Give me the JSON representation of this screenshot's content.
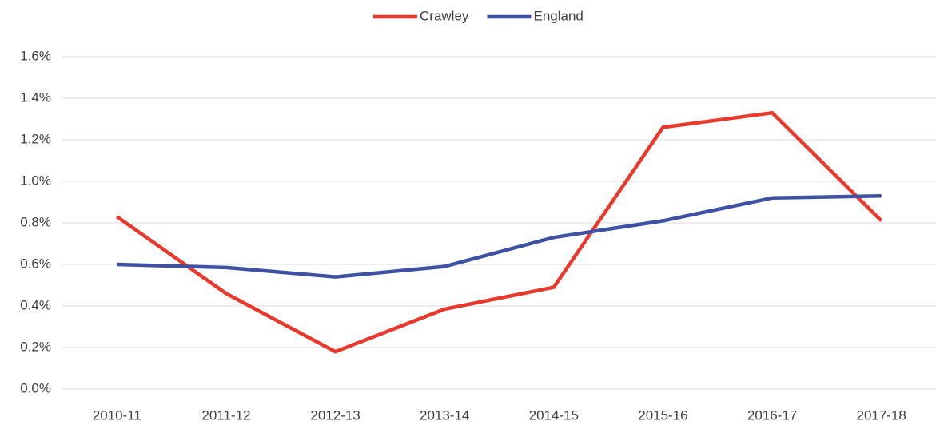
{
  "chart_data": {
    "type": "line",
    "categories": [
      "2010-11",
      "2011-12",
      "2012-13",
      "2013-14",
      "2014-15",
      "2015-16",
      "2016-17",
      "2017-18"
    ],
    "series": [
      {
        "name": "Crawley",
        "color": "#e8392c",
        "values": [
          0.83,
          0.46,
          0.18,
          0.385,
          0.49,
          1.26,
          1.33,
          0.81
        ]
      },
      {
        "name": "England",
        "color": "#3f51a3",
        "values": [
          0.6,
          0.585,
          0.54,
          0.59,
          0.73,
          0.81,
          0.92,
          0.93
        ]
      }
    ],
    "ylim": [
      0,
      1.6
    ],
    "yticks": [
      {
        "value": 0,
        "label": "0.0%"
      },
      {
        "value": 0.2,
        "label": "0.2%"
      },
      {
        "value": 0.4,
        "label": "0.4%"
      },
      {
        "value": 0.6,
        "label": "0.6%"
      },
      {
        "value": 0.8,
        "label": "0.8%"
      },
      {
        "value": 1.0,
        "label": "1.0%"
      },
      {
        "value": 1.2,
        "label": "1.2%"
      },
      {
        "value": 1.4,
        "label": "1.4%"
      },
      {
        "value": 1.6,
        "label": "1.6%"
      }
    ],
    "grid": true,
    "legend": "top"
  }
}
